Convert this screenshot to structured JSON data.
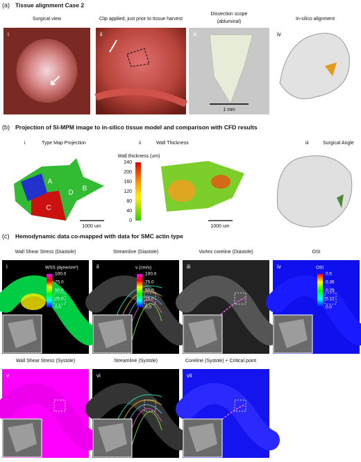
{
  "a": {
    "label": "(a)",
    "title": "Tissue alignment Case 2",
    "panels": [
      {
        "numeral": "i",
        "title": [
          "Surgical view"
        ]
      },
      {
        "numeral": "ii",
        "title": [
          "Clip applied, just prior to tissue harvest"
        ]
      },
      {
        "numeral": "iii",
        "title": [
          "Dissection scope",
          "(abluminal)"
        ],
        "scale_bar": "1 mm"
      },
      {
        "numeral": "iv",
        "title": [
          "In-silico alignment"
        ]
      }
    ]
  },
  "b": {
    "label": "(b)",
    "title": "Projection of SI-MPM image to in-silico tissue model and comparison with CFD results",
    "panels": [
      {
        "numeral": "i",
        "title": "Type Map Projection",
        "regions": [
          "A",
          "B",
          "C",
          "D"
        ],
        "scale_bar": "1000 um"
      },
      {
        "numeral": "ii",
        "title": "Wall Thickness",
        "colorbar": {
          "title": "Wall thickness (um)",
          "ticks": [
            "240",
            "200",
            "160",
            "120",
            "80",
            "40",
            "0"
          ]
        },
        "scale_bar": "1000 um"
      },
      {
        "numeral": "iii",
        "title": "Surgical Angle"
      }
    ]
  },
  "c": {
    "label": "(c)",
    "title": "Hemodynamic data co-mapped with data for SMC actin type",
    "panels": [
      {
        "numeral": "i",
        "title": "Wall Shear Stress (Diastole)",
        "colorbar": {
          "title": "WSS (dyne/cm²)",
          "ticks": [
            "100.0",
            "75.0",
            "50.0",
            "25.0",
            "0.0"
          ]
        }
      },
      {
        "numeral": "ii",
        "title": "Streamline (Diastole)",
        "colorbar": {
          "title": "v (cm/s)",
          "ticks": [
            "100.0",
            "75.0",
            "50.0",
            "25.0",
            "0.0"
          ]
        }
      },
      {
        "numeral": "iii",
        "title": "Vortex coreline (Diastole)"
      },
      {
        "numeral": "iv",
        "title": "OSI",
        "colorbar": {
          "title": "OSI",
          "ticks": [
            "0.5",
            "0.36",
            "0.25",
            "0.12",
            "0.0"
          ]
        }
      },
      {
        "numeral": "v",
        "title": "Wall Shear Stress (Systole)"
      },
      {
        "numeral": "vi",
        "title": "Streamline (Systole)"
      },
      {
        "numeral": "vii",
        "title": "Coreline (Systole) + Critical point"
      }
    ]
  }
}
